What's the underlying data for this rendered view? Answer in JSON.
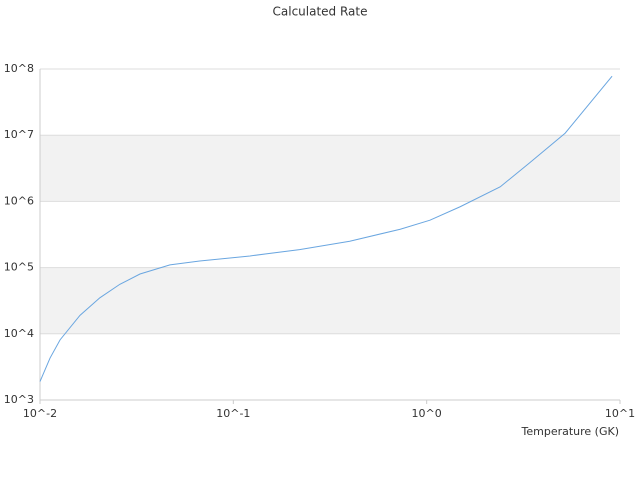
{
  "chart_data": {
    "type": "line",
    "title": "Calculated Rate",
    "x_label": "Temperature (GK)",
    "x": [
      0.01,
      0.01127,
      0.0127,
      0.0161,
      0.0204,
      0.0259,
      0.0329,
      0.047,
      0.067,
      0.122,
      0.22,
      0.4,
      0.73,
      1.04,
      1.49,
      2.4,
      3.4,
      5.2,
      9.1
    ],
    "series": [
      {
        "color": "#6aa6e0",
        "values": [
          1900,
          4300,
          8100,
          19000,
          35000,
          56000,
          80000,
          110000,
          126000,
          150000,
          187000,
          250000,
          380000,
          520000,
          830000,
          1660000,
          3800000,
          10700000,
          78000000
        ]
      }
    ],
    "xscale": "log",
    "yscale": "log",
    "xlim": [
      0.01,
      10
    ],
    "ylim": [
      1000,
      100000000
    ],
    "xticks": [
      {
        "value": 0.01,
        "label": "10^-2"
      },
      {
        "value": 0.1,
        "label": "10^-1"
      },
      {
        "value": 1,
        "label": "10^0"
      },
      {
        "value": 10,
        "label": "10^1"
      }
    ],
    "yticks": [
      {
        "value": 1000,
        "label": "10^3"
      },
      {
        "value": 10000,
        "label": "10^4"
      },
      {
        "value": 100000,
        "label": "10^5"
      },
      {
        "value": 1000000,
        "label": "10^6"
      },
      {
        "value": 10000000,
        "label": "10^7"
      },
      {
        "value": 100000000,
        "label": "10^8"
      }
    ],
    "grid": true,
    "band_color": "#f2f2f2"
  }
}
